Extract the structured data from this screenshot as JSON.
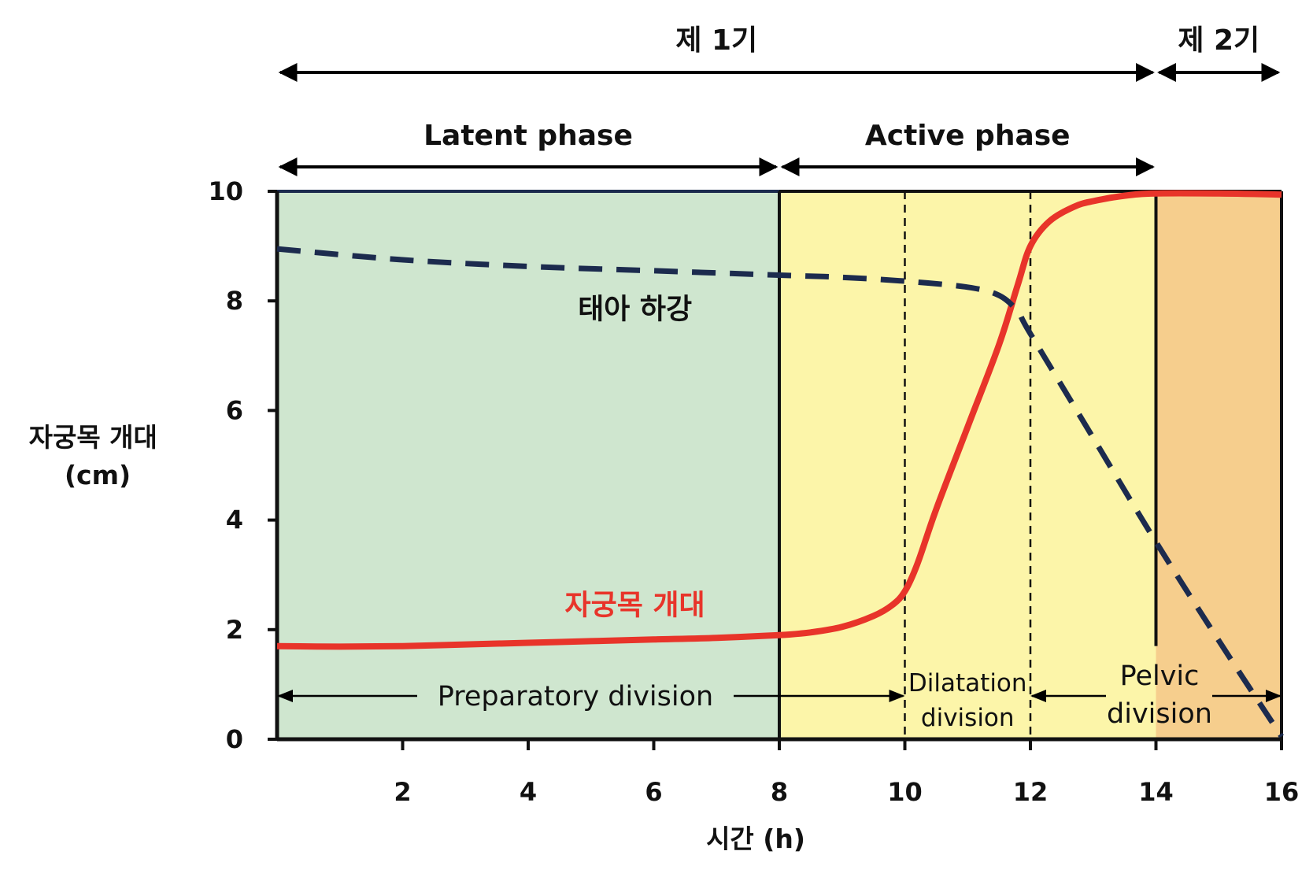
{
  "chart_data": {
    "type": "line",
    "xlabel": "시간 (h)",
    "ylabel": [
      "자궁목 개대",
      "(cm)"
    ],
    "xlim": [
      0,
      16
    ],
    "ylim": [
      0,
      10
    ],
    "x_ticks": [
      {
        "value": 2,
        "label": "2"
      },
      {
        "value": 4,
        "label": "4"
      },
      {
        "value": 6,
        "label": "6"
      },
      {
        "value": 8,
        "label": "8"
      },
      {
        "value": 10,
        "label": "10"
      },
      {
        "value": 12,
        "label": "12"
      },
      {
        "value": 14,
        "label": "14"
      },
      {
        "value": 16,
        "label": "16"
      }
    ],
    "y_ticks": [
      {
        "value": 0,
        "label": "0"
      },
      {
        "value": 2,
        "label": "2"
      },
      {
        "value": 4,
        "label": "4"
      },
      {
        "value": 6,
        "label": "6"
      },
      {
        "value": 8,
        "label": "8"
      },
      {
        "value": 10,
        "label": "10"
      }
    ],
    "series": [
      {
        "name": "자궁목 개대",
        "style": "solid",
        "color": "#e8342a",
        "points": [
          [
            0,
            1.7
          ],
          [
            1,
            1.69
          ],
          [
            2,
            1.7
          ],
          [
            3,
            1.73
          ],
          [
            4,
            1.76
          ],
          [
            5,
            1.79
          ],
          [
            6,
            1.82
          ],
          [
            7,
            1.85
          ],
          [
            8,
            1.9
          ],
          [
            8.5,
            1.95
          ],
          [
            9,
            2.05
          ],
          [
            9.5,
            2.25
          ],
          [
            9.8,
            2.45
          ],
          [
            10,
            2.7
          ],
          [
            10.2,
            3.2
          ],
          [
            10.5,
            4.2
          ],
          [
            11,
            5.7
          ],
          [
            11.5,
            7.2
          ],
          [
            11.8,
            8.3
          ],
          [
            12,
            9.0
          ],
          [
            12.3,
            9.45
          ],
          [
            12.7,
            9.72
          ],
          [
            13,
            9.82
          ],
          [
            13.5,
            9.92
          ],
          [
            14,
            9.96
          ],
          [
            15,
            9.96
          ],
          [
            16,
            9.94
          ]
        ]
      },
      {
        "name": "태아 하강",
        "style": "dashed",
        "color": "#1c2b4e",
        "points": [
          [
            0,
            8.95
          ],
          [
            2,
            8.75
          ],
          [
            4,
            8.63
          ],
          [
            6,
            8.55
          ],
          [
            8,
            8.47
          ],
          [
            9,
            8.43
          ],
          [
            10,
            8.36
          ],
          [
            11,
            8.25
          ],
          [
            11.5,
            8.1
          ],
          [
            11.8,
            7.8
          ],
          [
            12,
            7.4
          ],
          [
            13,
            5.5
          ],
          [
            14,
            3.6
          ],
          [
            15,
            1.8
          ],
          [
            16,
            0.05
          ]
        ]
      }
    ],
    "regions": [
      {
        "x0": 0,
        "x1": 8,
        "color": "#cfe6cf"
      },
      {
        "x0": 8,
        "x1": 14,
        "color": "#fcf5a9"
      },
      {
        "x0": 14,
        "x1": 16,
        "color": "#f6ce8d"
      }
    ],
    "dashed_dividers": [
      10,
      12
    ],
    "stages": [
      {
        "label": "제 1기",
        "x0": 0,
        "x1": 14
      },
      {
        "label": "제 2기",
        "x0": 14,
        "x1": 16
      }
    ],
    "phases": [
      {
        "label": "Latent phase",
        "x0": 0,
        "x1": 8
      },
      {
        "label": "Active phase",
        "x0": 8,
        "x1": 14
      }
    ],
    "divisions": [
      {
        "lines": [
          "Preparatory division"
        ],
        "x0": 0,
        "x1": 10
      },
      {
        "lines": [
          "Dilatation",
          "division"
        ],
        "x0": 10,
        "x1": 12
      },
      {
        "lines": [
          "Pelvic",
          "division"
        ],
        "x0": 12,
        "x1": 16
      }
    ],
    "annotations": [
      {
        "text": "태아 하강",
        "x": 5.7,
        "y": 7.85,
        "color": "#111111"
      },
      {
        "text": "자궁목 개대",
        "x": 5.7,
        "y": 2.45,
        "color": "#e8342a"
      }
    ]
  }
}
